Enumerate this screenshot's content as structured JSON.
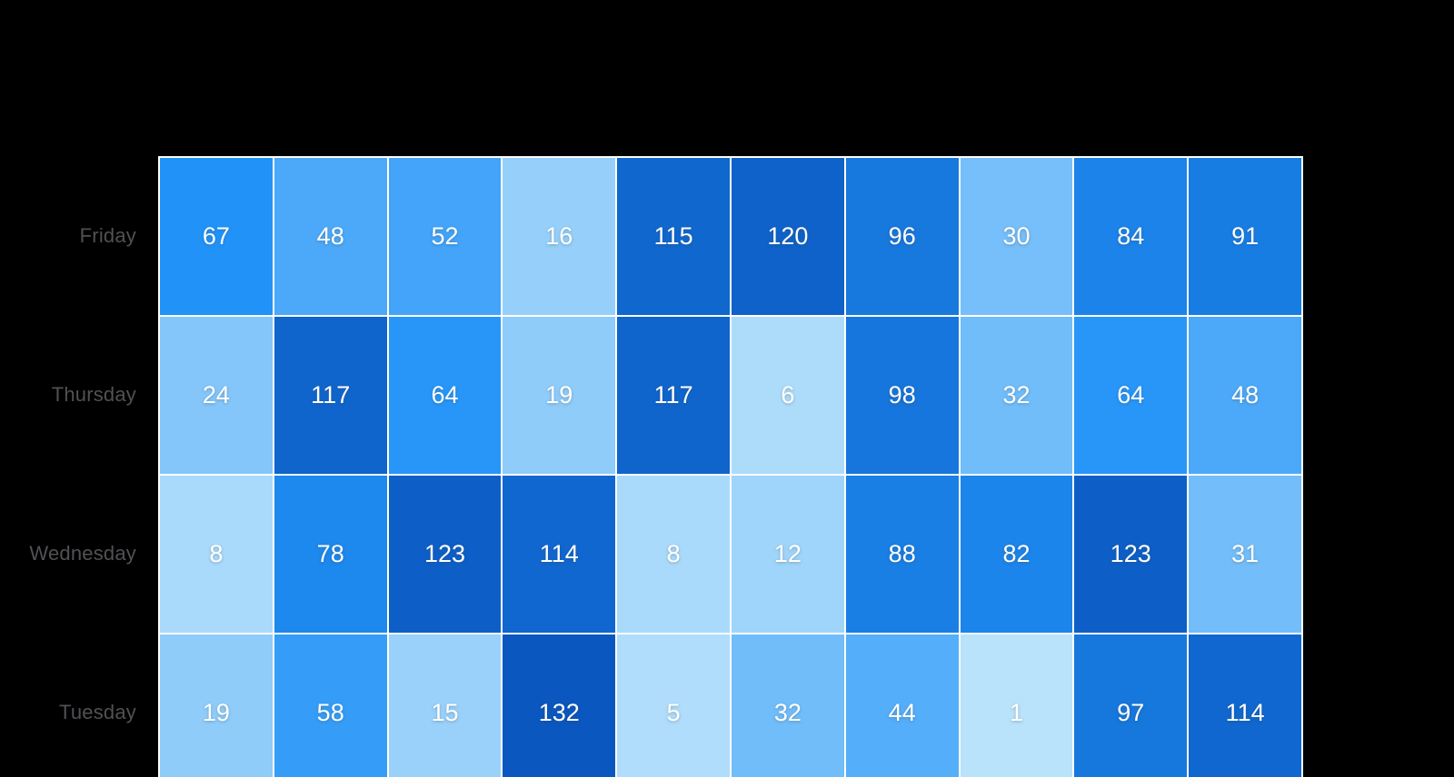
{
  "chart_data": {
    "type": "heatmap",
    "title": "",
    "rows": [
      "Friday",
      "Thursday",
      "Wednesday",
      "Tuesday"
    ],
    "num_columns": 10,
    "column_labels_visible": false,
    "series": [
      {
        "name": "Friday",
        "values": [
          67,
          48,
          52,
          16,
          115,
          120,
          96,
          30,
          84,
          91
        ]
      },
      {
        "name": "Thursday",
        "values": [
          24,
          117,
          64,
          19,
          117,
          6,
          98,
          32,
          64,
          48
        ]
      },
      {
        "name": "Wednesday",
        "values": [
          8,
          78,
          123,
          114,
          8,
          12,
          88,
          82,
          123,
          31
        ]
      },
      {
        "name": "Tuesday",
        "values": [
          19,
          58,
          15,
          132,
          5,
          32,
          44,
          1,
          97,
          114
        ]
      }
    ],
    "color_scale": {
      "min": 1,
      "max": 132,
      "stops": [
        "#b9e2fb",
        "#2193f8",
        "#0a57bf"
      ]
    },
    "styles": {
      "background": "#000000",
      "cell_border_color": "#ffffff",
      "value_label_color": "#ffffff",
      "row_label_color": "#515155"
    },
    "legend_position": "none",
    "grid": "white cell borders, no axis lines"
  }
}
